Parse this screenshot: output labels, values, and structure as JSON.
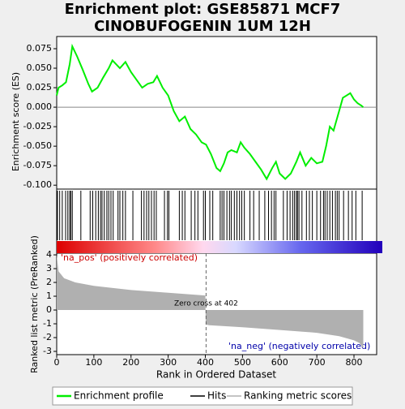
{
  "chart_data": [
    {
      "type": "line",
      "title": "Enrichment plot: GSE85871 MCF7",
      "subtitle": "CINOBUFOGENIN 1UM 12H",
      "ylabel": "Enrichment score (ES)",
      "xlim": [
        0,
        861
      ],
      "ylim": [
        -0.105,
        0.0906
      ],
      "yticks": [
        {
          "value": 0.075,
          "label": "0.075"
        },
        {
          "value": 0.05,
          "label": "0.050"
        },
        {
          "value": 0.025,
          "label": "0.025"
        },
        {
          "value": 0,
          "label": "0.000"
        },
        {
          "value": -0.025,
          "label": "-0.025"
        },
        {
          "value": -0.05,
          "label": "-0.050"
        },
        {
          "value": -0.075,
          "label": "-0.075"
        },
        {
          "value": -0.1,
          "label": "-0.100"
        }
      ],
      "series": [
        {
          "name": "Enrichment profile",
          "color": "#00ee00",
          "x": [
            0,
            5,
            15,
            25,
            35,
            42,
            55,
            70,
            85,
            95,
            110,
            125,
            140,
            150,
            160,
            170,
            185,
            200,
            215,
            230,
            245,
            260,
            270,
            285,
            300,
            315,
            330,
            345,
            360,
            375,
            390,
            402,
            415,
            430,
            440,
            450,
            460,
            470,
            485,
            495,
            505,
            520,
            535,
            550,
            565,
            580,
            590,
            600,
            615,
            630,
            645,
            655,
            670,
            685,
            700,
            715,
            725,
            735,
            745,
            760,
            770,
            780,
            790,
            800,
            810,
            820,
            825
          ],
          "values": [
            0.015,
            0.025,
            0.028,
            0.032,
            0.055,
            0.078,
            0.065,
            0.048,
            0.03,
            0.02,
            0.025,
            0.038,
            0.05,
            0.06,
            0.055,
            0.05,
            0.058,
            0.045,
            0.035,
            0.025,
            0.03,
            0.032,
            0.04,
            0.025,
            0.015,
            -0.005,
            -0.018,
            -0.012,
            -0.028,
            -0.035,
            -0.045,
            -0.048,
            -0.06,
            -0.078,
            -0.082,
            -0.072,
            -0.058,
            -0.055,
            -0.058,
            -0.045,
            -0.052,
            -0.06,
            -0.07,
            -0.08,
            -0.092,
            -0.078,
            -0.07,
            -0.085,
            -0.092,
            -0.085,
            -0.07,
            -0.058,
            -0.075,
            -0.065,
            -0.072,
            -0.07,
            -0.05,
            -0.025,
            -0.03,
            -0.005,
            0.012,
            0.015,
            0.018,
            0.01,
            0.005,
            0.002,
            0
          ]
        }
      ]
    },
    {
      "type": "rug",
      "xlim": [
        0,
        861
      ],
      "series": [
        {
          "name": "Hits",
          "color": "#000000",
          "x": [
            2,
            8,
            15,
            24,
            30,
            35,
            38,
            42,
            65,
            90,
            97,
            105,
            112,
            118,
            122,
            128,
            135,
            140,
            146,
            152,
            165,
            170,
            178,
            185,
            205,
            228,
            235,
            242,
            248,
            255,
            262,
            268,
            290,
            298,
            302,
            330,
            338,
            345,
            362,
            372,
            380,
            395,
            400,
            412,
            420,
            440,
            445,
            450,
            458,
            465,
            470,
            478,
            485,
            492,
            498,
            505,
            520,
            530,
            545,
            560,
            570,
            578,
            585,
            590,
            610,
            620,
            628,
            635,
            640,
            645,
            648,
            652,
            660,
            672,
            680,
            688,
            700,
            710,
            718,
            722,
            728,
            735,
            742,
            750,
            755,
            760,
            772,
            785,
            795,
            805,
            822
          ]
        }
      ]
    },
    {
      "type": "area",
      "ylabel": "Ranked list metric (PreRanked)",
      "xlabel": "Rank in Ordered Dataset",
      "pos_label": "'na_pos' (positively correlated)",
      "neg_label": "'na_neg' (negatively correlated)",
      "annotation": "Zero cross at 402",
      "zero_cross": 402,
      "xlim": [
        0,
        861
      ],
      "ylim": [
        -3.235,
        4.12
      ],
      "xticks": [
        0,
        100,
        200,
        300,
        400,
        500,
        600,
        700,
        800
      ],
      "yticks": [
        4,
        3,
        2,
        1,
        0,
        -1,
        -2,
        -3
      ],
      "series": [
        {
          "name": "Ranking metric scores",
          "color": "#b0b0b0",
          "x": [
            0,
            5,
            20,
            50,
            100,
            200,
            300,
            400,
            401,
            410,
            500,
            600,
            700,
            760,
            800,
            815,
            825
          ],
          "values": [
            4.0,
            2.8,
            2.3,
            2.0,
            1.75,
            1.45,
            1.25,
            1.05,
            -1.05,
            -1.1,
            -1.25,
            -1.45,
            -1.65,
            -1.9,
            -2.2,
            -2.4,
            -2.8
          ]
        }
      ]
    }
  ]
}
